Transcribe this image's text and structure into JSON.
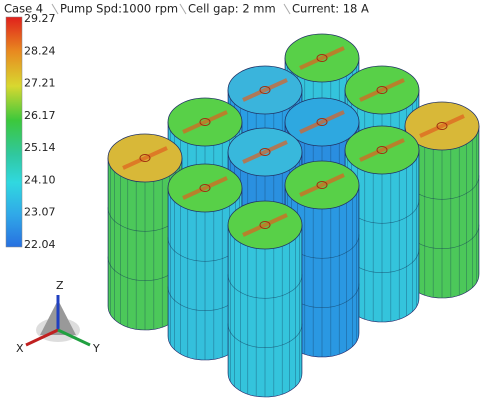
{
  "header": {
    "segments": [
      "Case 4",
      "Pump Spd:1000 rpm",
      "Cell gap: 2 mm",
      "Current: 18 A"
    ]
  },
  "colorbar": {
    "labels": [
      "29.27",
      "28.24",
      "27.21",
      "26.17",
      "25.14",
      "24.10",
      "23.07",
      "22.04"
    ]
  },
  "triad": {
    "z": "Z",
    "x": "X",
    "y": "Y"
  }
}
